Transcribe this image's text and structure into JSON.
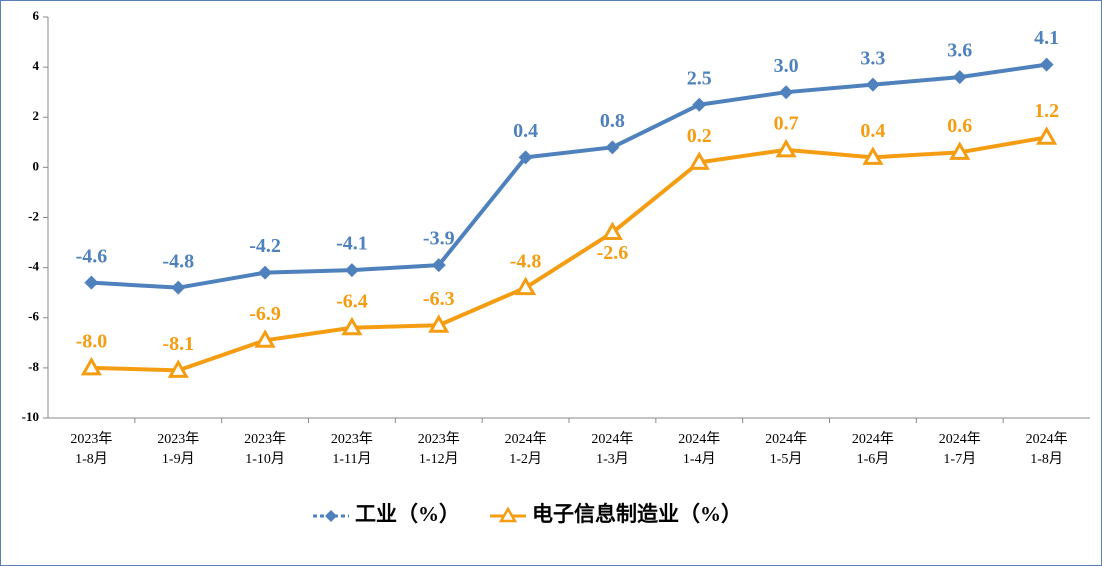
{
  "chart_data": {
    "type": "line",
    "categories": [
      "2023年\n1-8月",
      "2023年\n1-9月",
      "2023年\n1-10月",
      "2023年\n1-11月",
      "2023年\n1-12月",
      "2024年\n1-2月",
      "2024年\n1-3月",
      "2024年\n1-4月",
      "2024年\n1-5月",
      "2024年\n1-6月",
      "2024年\n1-7月",
      "2024年\n1-8月"
    ],
    "series": [
      {
        "name": "工业（%）",
        "color": "#4f81bd",
        "marker": "diamond",
        "values": [
          -4.6,
          -4.8,
          -4.2,
          -4.1,
          -3.9,
          0.4,
          0.8,
          2.5,
          3,
          3.3,
          3.6,
          4.1
        ],
        "value_labels": [
          "-4.6",
          "-4.8",
          "-4.2",
          "-4.1",
          "-3.9",
          "0.4",
          "0.8",
          "2.5",
          "3.0",
          "3.3",
          "3.6",
          "4.1"
        ]
      },
      {
        "name": "电子信息制造业（%）",
        "color": "#f59d12",
        "marker": "triangle",
        "values": [
          -8,
          -8.1,
          -6.9,
          -6.4,
          -6.3,
          -4.8,
          -2.6,
          0.2,
          0.7,
          0.4,
          0.6,
          1.2
        ],
        "value_labels": [
          "-8.0",
          "-8.1",
          "-6.9",
          "-6.4",
          "-6.3",
          "-4.8",
          "-2.6",
          "0.2",
          "0.7",
          "0.4",
          "0.6",
          "1.2"
        ]
      }
    ],
    "ylim": [
      -10,
      6
    ],
    "yticks": [
      -10,
      -8,
      -6,
      -4,
      -2,
      0,
      2,
      4,
      6
    ],
    "legend": "bottom"
  }
}
